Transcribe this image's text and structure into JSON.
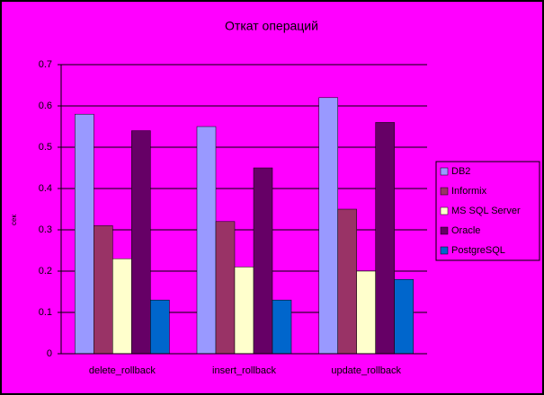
{
  "chart_data": {
    "type": "bar",
    "title": "Откат операций",
    "y_label": "сек",
    "categories": [
      "delete_rollback",
      "insert_rollback",
      "update_rollback"
    ],
    "series": [
      {
        "name": "DB2",
        "color": "#9999ff",
        "values": [
          0.58,
          0.55,
          0.62
        ]
      },
      {
        "name": "Informix",
        "color": "#993366",
        "values": [
          0.31,
          0.32,
          0.35
        ]
      },
      {
        "name": "MS SQL Server",
        "color": "#ffffcc",
        "values": [
          0.23,
          0.21,
          0.2
        ]
      },
      {
        "name": "Oracle",
        "color": "#660066",
        "values": [
          0.54,
          0.45,
          0.56
        ]
      },
      {
        "name": "PostgreSQL",
        "color": "#0066cc",
        "values": [
          0.13,
          0.13,
          0.18
        ]
      }
    ],
    "ylim": [
      0,
      0.7
    ],
    "yticks": [
      0,
      0.1,
      0.2,
      0.3,
      0.4,
      0.5,
      0.6,
      0.7
    ],
    "grid": true,
    "legend": "right"
  }
}
